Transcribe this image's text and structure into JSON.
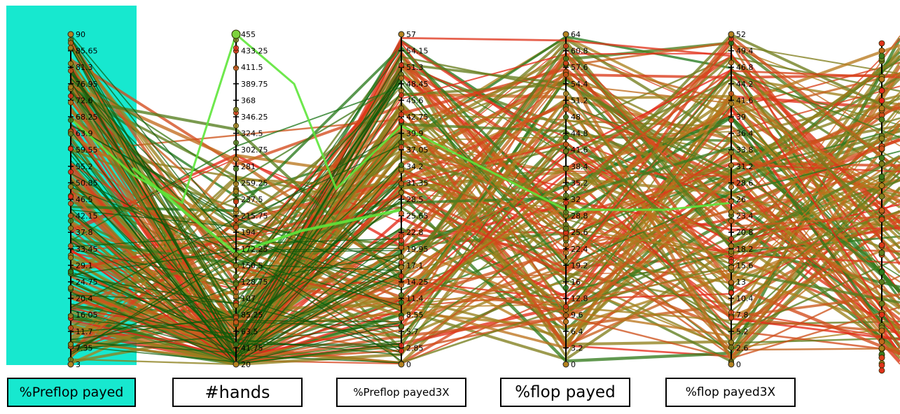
{
  "chart_data": {
    "type": "parallel-coordinates",
    "axes": [
      {
        "name": "%Preflop payed",
        "selected": true,
        "ticks": [
          "90",
          "85.65",
          "81.3",
          "76.95",
          "72.6",
          "68.25",
          "63.9",
          "59.55",
          "55.2",
          "50.85",
          "46.5",
          "42.15",
          "37.8",
          "33.45",
          "29.1",
          "24.75",
          "20.4",
          "16.05",
          "11.7",
          "7.35",
          "3"
        ]
      },
      {
        "name": "#hands",
        "selected": false,
        "ticks": [
          "455",
          "433.25",
          "411.5",
          "389.75",
          "368",
          "346.25",
          "324.5",
          "302.75",
          "281",
          "259.25",
          "237.5",
          "215.75",
          "194",
          "172.25",
          "150.5",
          "128.75",
          "107",
          "85.25",
          "63.5",
          "41.75",
          "20"
        ]
      },
      {
        "name": "%Preflop payed3X",
        "selected": false,
        "ticks": [
          "57",
          "54.15",
          "51.3",
          "48.45",
          "45.6",
          "42.75",
          "39.9",
          "37.05",
          "34.2",
          "31.35",
          "28.5",
          "25.65",
          "22.8",
          "19.95",
          "17.1",
          "14.25",
          "11.4",
          "8.55",
          "5.7",
          "2.85",
          "0"
        ]
      },
      {
        "name": "%flop payed",
        "selected": false,
        "ticks": [
          "64",
          "60.8",
          "57.6",
          "54.4",
          "51.2",
          "48",
          "44.8",
          "41.6",
          "38.4",
          "35.2",
          "32",
          "28.8",
          "25.6",
          "22.4",
          "19.2",
          "16",
          "12.8",
          "9.6",
          "6.4",
          "3.2",
          "0"
        ]
      },
      {
        "name": "%flop payed3X",
        "selected": false,
        "ticks": [
          "52",
          "49.4",
          "46.8",
          "44.2",
          "41.6",
          "39",
          "36.4",
          "33.8",
          "31.2",
          "28.6",
          "26",
          "23.4",
          "20.8",
          "18.2",
          "15.6",
          "13",
          "10.4",
          "7.8",
          "5.2",
          "2.6",
          "0"
        ]
      }
    ],
    "colors": {
      "selection_band": "#17e8cf",
      "highlight_line": "#5ee63a",
      "line_low": "#e8241a",
      "line_mid": "#b4821e",
      "line_high": "#1e7a1e",
      "selected_line": "#0a5a0a"
    }
  }
}
